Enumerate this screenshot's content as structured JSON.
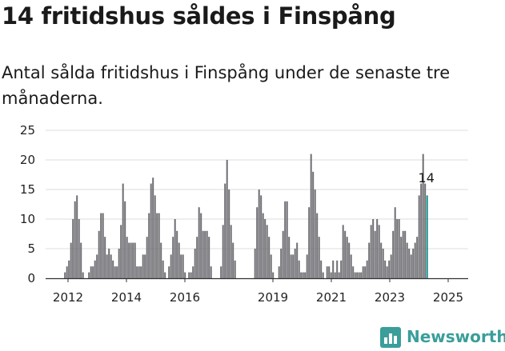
{
  "chart_data": {
    "type": "bar",
    "title": "14 fritidshus såldes i Finspång",
    "subtitle": "Antal sålda fritidshus i Finspång under de senaste tre månaderna.",
    "ylim": [
      0,
      25
    ],
    "y_ticks": [
      0,
      5,
      10,
      15,
      20,
      25
    ],
    "x_tick_labels": [
      "2012",
      "2014",
      "2016",
      "2019",
      "2021",
      "2023",
      "2025"
    ],
    "grid": true,
    "highlight": {
      "label": "14",
      "value": 14
    },
    "values": [
      0,
      0,
      0,
      0,
      0,
      0,
      0,
      0,
      0,
      1,
      2,
      3,
      6,
      10,
      13,
      14,
      10,
      6,
      1,
      0,
      0,
      1,
      2,
      2,
      3,
      4,
      8,
      11,
      11,
      7,
      4,
      5,
      4,
      3,
      2,
      2,
      5,
      9,
      16,
      13,
      7,
      6,
      6,
      6,
      6,
      2,
      2,
      2,
      4,
      4,
      7,
      11,
      16,
      17,
      14,
      11,
      11,
      6,
      3,
      1,
      0,
      2,
      4,
      7,
      10,
      8,
      6,
      4,
      4,
      1,
      0,
      1,
      1,
      2,
      5,
      7,
      12,
      11,
      8,
      8,
      8,
      7,
      2,
      0,
      0,
      0,
      0,
      2,
      9,
      16,
      20,
      15,
      9,
      6,
      3,
      0,
      0,
      0,
      0,
      0,
      0,
      0,
      0,
      0,
      5,
      12,
      15,
      14,
      11,
      10,
      9,
      7,
      4,
      1,
      0,
      0,
      2,
      5,
      8,
      13,
      13,
      7,
      4,
      4,
      5,
      6,
      3,
      1,
      1,
      1,
      4,
      12,
      21,
      18,
      15,
      11,
      7,
      3,
      1,
      0,
      2,
      2,
      1,
      3,
      1,
      3,
      1,
      3,
      9,
      8,
      7,
      6,
      4,
      2,
      1,
      1,
      1,
      1,
      2,
      2,
      3,
      6,
      9,
      10,
      8,
      10,
      9,
      6,
      5,
      3,
      2,
      3,
      4,
      8,
      12,
      10,
      10,
      7,
      8,
      8,
      6,
      5,
      4,
      5,
      6,
      7,
      14,
      16,
      21,
      16,
      14
    ],
    "colors": {
      "bars": "#6e6e73",
      "highlight": "#12918b",
      "grid": "#dddddd",
      "axis": "#333333"
    }
  },
  "brand": {
    "name": "Newsworthy",
    "color": "#3a9e9a"
  }
}
